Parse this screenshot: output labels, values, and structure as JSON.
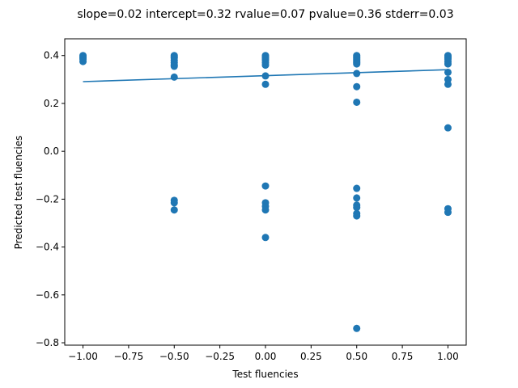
{
  "chart_data": {
    "type": "scatter",
    "title": "slope=0.02 intercept=0.32 rvalue=0.07 pvalue=0.36 stderr=0.03",
    "xlabel": "Test fluencies",
    "ylabel": "Predicted test fluencies",
    "xlim": [
      -1.1,
      1.1
    ],
    "ylim": [
      -0.81,
      0.47
    ],
    "xticks": [
      -1.0,
      -0.75,
      -0.5,
      -0.25,
      0.0,
      0.25,
      0.5,
      0.75,
      1.0
    ],
    "xtick_labels": [
      "−1.00",
      "−0.75",
      "−0.50",
      "−0.25",
      "0.00",
      "0.25",
      "0.50",
      "0.75",
      "1.00"
    ],
    "yticks": [
      -0.8,
      -0.6,
      -0.4,
      -0.2,
      0.0,
      0.2,
      0.4
    ],
    "ytick_labels": [
      "−0.8",
      "−0.6",
      "−0.4",
      "−0.2",
      "0.0",
      "0.2",
      "0.4"
    ],
    "grid": false,
    "point_color": "#1f77b4",
    "line_color": "#1f77b4",
    "points": [
      {
        "x": -1.0,
        "y": 0.4
      },
      {
        "x": -1.0,
        "y": 0.395
      },
      {
        "x": -1.0,
        "y": 0.39
      },
      {
        "x": -1.0,
        "y": 0.385
      },
      {
        "x": -1.0,
        "y": 0.375
      },
      {
        "x": -0.5,
        "y": 0.4
      },
      {
        "x": -0.5,
        "y": 0.395
      },
      {
        "x": -0.5,
        "y": 0.39
      },
      {
        "x": -0.5,
        "y": 0.38
      },
      {
        "x": -0.5,
        "y": 0.37
      },
      {
        "x": -0.5,
        "y": 0.36
      },
      {
        "x": -0.5,
        "y": 0.355
      },
      {
        "x": -0.5,
        "y": 0.31
      },
      {
        "x": -0.5,
        "y": -0.205
      },
      {
        "x": -0.5,
        "y": -0.215
      },
      {
        "x": -0.5,
        "y": -0.245
      },
      {
        "x": 0.0,
        "y": 0.4
      },
      {
        "x": 0.0,
        "y": 0.395
      },
      {
        "x": 0.0,
        "y": 0.39
      },
      {
        "x": 0.0,
        "y": 0.385
      },
      {
        "x": 0.0,
        "y": 0.38
      },
      {
        "x": 0.0,
        "y": 0.37
      },
      {
        "x": 0.0,
        "y": 0.36
      },
      {
        "x": 0.0,
        "y": 0.315
      },
      {
        "x": 0.0,
        "y": 0.28
      },
      {
        "x": 0.0,
        "y": -0.145
      },
      {
        "x": 0.0,
        "y": -0.215
      },
      {
        "x": 0.0,
        "y": -0.23
      },
      {
        "x": 0.0,
        "y": -0.245
      },
      {
        "x": 0.0,
        "y": -0.36
      },
      {
        "x": 0.5,
        "y": 0.4
      },
      {
        "x": 0.5,
        "y": 0.395
      },
      {
        "x": 0.5,
        "y": 0.39
      },
      {
        "x": 0.5,
        "y": 0.385
      },
      {
        "x": 0.5,
        "y": 0.38
      },
      {
        "x": 0.5,
        "y": 0.375
      },
      {
        "x": 0.5,
        "y": 0.37
      },
      {
        "x": 0.5,
        "y": 0.365
      },
      {
        "x": 0.5,
        "y": 0.325
      },
      {
        "x": 0.5,
        "y": 0.27
      },
      {
        "x": 0.5,
        "y": 0.205
      },
      {
        "x": 0.5,
        "y": -0.155
      },
      {
        "x": 0.5,
        "y": -0.195
      },
      {
        "x": 0.5,
        "y": -0.225
      },
      {
        "x": 0.5,
        "y": -0.235
      },
      {
        "x": 0.5,
        "y": -0.26
      },
      {
        "x": 0.5,
        "y": -0.27
      },
      {
        "x": 0.5,
        "y": -0.74
      },
      {
        "x": 1.0,
        "y": 0.4
      },
      {
        "x": 1.0,
        "y": 0.395
      },
      {
        "x": 1.0,
        "y": 0.39
      },
      {
        "x": 1.0,
        "y": 0.385
      },
      {
        "x": 1.0,
        "y": 0.375
      },
      {
        "x": 1.0,
        "y": 0.365
      },
      {
        "x": 1.0,
        "y": 0.33
      },
      {
        "x": 1.0,
        "y": 0.3
      },
      {
        "x": 1.0,
        "y": 0.28
      },
      {
        "x": 1.0,
        "y": 0.098
      },
      {
        "x": 1.0,
        "y": -0.24
      },
      {
        "x": 1.0,
        "y": -0.255
      }
    ],
    "regression": {
      "slope": 0.025,
      "intercept": 0.316,
      "x_range": [
        -1.0,
        1.0
      ]
    }
  }
}
